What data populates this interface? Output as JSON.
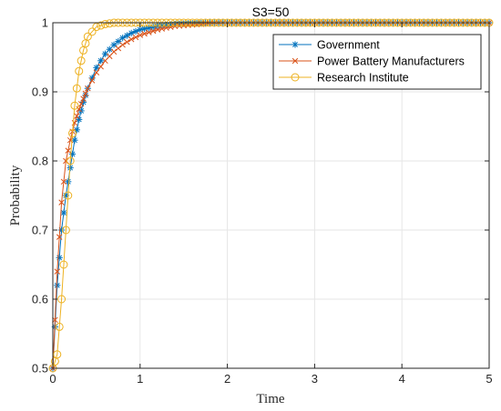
{
  "chart_data": {
    "type": "line",
    "title": "S3=50",
    "xlabel": "Time",
    "ylabel": "Probability",
    "xlim": [
      0,
      5
    ],
    "ylim": [
      0.5,
      1
    ],
    "xticks": [
      "0",
      "1",
      "2",
      "3",
      "4",
      "5"
    ],
    "yticks": [
      "0.5",
      "0.6",
      "0.7",
      "0.8",
      "0.9",
      "1"
    ],
    "grid": true,
    "legend_position": "top-right",
    "series": [
      {
        "name": "Government",
        "color": "#0072BD",
        "marker": "asterisk",
        "x": [
          0,
          0.05,
          0.1,
          0.15,
          0.2,
          0.25,
          0.3,
          0.35,
          0.4,
          0.5,
          0.6,
          0.7,
          0.8,
          0.9,
          1.0,
          1.2,
          1.4,
          1.6,
          1.8,
          2.0,
          2.5,
          3.0,
          3.5,
          4.0,
          4.5,
          5.0
        ],
        "y": [
          0.5,
          0.62,
          0.7,
          0.75,
          0.79,
          0.83,
          0.86,
          0.885,
          0.905,
          0.935,
          0.955,
          0.968,
          0.978,
          0.985,
          0.99,
          0.995,
          0.998,
          0.999,
          1.0,
          1.0,
          1.0,
          1.0,
          1.0,
          1.0,
          1.0,
          1.0
        ]
      },
      {
        "name": "Power Battery Manufacturers",
        "color": "#D95319",
        "marker": "x",
        "x": [
          0,
          0.05,
          0.1,
          0.15,
          0.2,
          0.25,
          0.3,
          0.35,
          0.4,
          0.5,
          0.6,
          0.7,
          0.8,
          0.9,
          1.0,
          1.2,
          1.4,
          1.6,
          1.8,
          2.0,
          2.5,
          3.0,
          3.5,
          4.0,
          4.5,
          5.0
        ],
        "y": [
          0.5,
          0.64,
          0.74,
          0.8,
          0.83,
          0.855,
          0.875,
          0.89,
          0.905,
          0.928,
          0.945,
          0.958,
          0.968,
          0.976,
          0.982,
          0.99,
          0.995,
          0.997,
          0.999,
          1.0,
          1.0,
          1.0,
          1.0,
          1.0,
          1.0,
          1.0
        ]
      },
      {
        "name": "Research Institute",
        "color": "#EDB120",
        "marker": "circle",
        "x": [
          0,
          0.05,
          0.1,
          0.15,
          0.2,
          0.25,
          0.3,
          0.35,
          0.4,
          0.5,
          0.6,
          0.7,
          0.8,
          0.9,
          1.0,
          1.2,
          1.4,
          1.6,
          1.8,
          2.0,
          2.5,
          3.0,
          3.5,
          4.0,
          4.5,
          5.0
        ],
        "y": [
          0.5,
          0.52,
          0.6,
          0.7,
          0.8,
          0.88,
          0.93,
          0.96,
          0.98,
          0.994,
          0.998,
          1.0,
          1.0,
          1.0,
          1.0,
          1.0,
          1.0,
          1.0,
          1.0,
          1.0,
          1.0,
          1.0,
          1.0,
          1.0,
          1.0,
          1.0
        ]
      }
    ]
  }
}
